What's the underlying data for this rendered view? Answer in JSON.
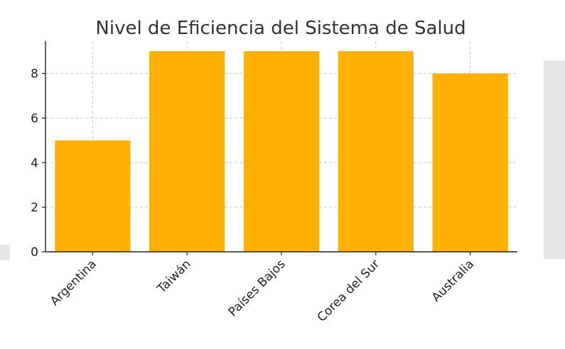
{
  "chart_data": {
    "type": "bar",
    "title": "Nivel de Eficiencia del Sistema de Salud",
    "categories": [
      "Argentina",
      "Taiwán",
      "Países Bajos",
      "Corea del Sur",
      "Australia"
    ],
    "values": [
      5,
      9,
      9,
      9,
      8
    ],
    "xlabel": "",
    "ylabel": "",
    "ylim": [
      0,
      9.45
    ],
    "yticks": [
      0,
      2,
      4,
      6,
      8
    ],
    "grid": true,
    "bar_color": "#FFB000"
  }
}
